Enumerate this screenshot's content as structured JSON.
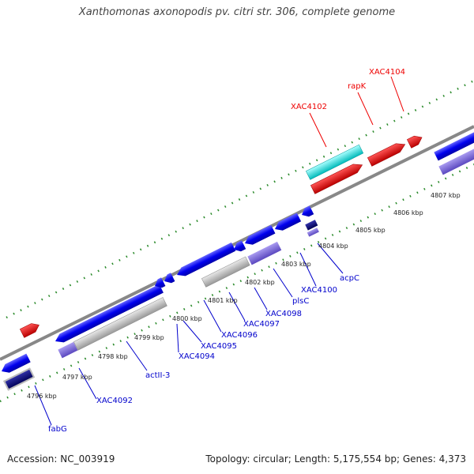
{
  "title": "Xanthomonas axonopodis pv. citri str. 306, complete genome",
  "footer": {
    "accession": "Accession: NC_003919",
    "summary": "Topology: circular; Length: 5,175,554 bp; Genes: 4,373"
  },
  "ticks": [
    "4796 kbp",
    "4797 kbp",
    "4798 kbp",
    "4799 kbp",
    "4800 kbp",
    "4801 kbp",
    "4802 kbp",
    "4803 kbp",
    "4804 kbp",
    "4805 kbp",
    "4806 kbp",
    "4807 kbp"
  ],
  "genes_top": [
    "XAC4102",
    "rapK",
    "XAC4104"
  ],
  "genes_bottom": [
    "fabG",
    "XAC4092",
    "actII-3",
    "XAC4094",
    "XAC4095",
    "XAC4096",
    "XAC4097",
    "XAC4098",
    "plsC",
    "XAC4100",
    "acpC"
  ],
  "colors": {
    "blue": "#0000ee",
    "purple": "#7b68d8",
    "grey": "#bbbbbb",
    "red": "#ee0000",
    "cyan": "#00e5e5",
    "navy": "#000080",
    "tick": "#2a8a2a",
    "backbone": "#888888"
  }
}
